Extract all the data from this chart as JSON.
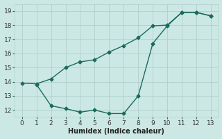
{
  "line1_x": [
    0,
    1,
    2,
    3,
    4,
    5,
    6,
    7,
    8,
    9,
    10,
    11,
    12,
    13
  ],
  "line1_y": [
    13.9,
    13.85,
    14.2,
    15.0,
    15.4,
    15.55,
    16.1,
    16.55,
    17.1,
    17.95,
    18.0,
    18.9,
    18.9,
    18.65
  ],
  "line2_x": [
    1,
    2,
    3,
    4,
    5,
    6,
    7,
    8,
    9,
    10,
    11,
    12,
    13
  ],
  "line2_y": [
    13.8,
    12.3,
    12.1,
    11.85,
    12.0,
    11.75,
    11.75,
    13.0,
    16.7,
    17.95,
    18.9,
    18.9,
    18.65
  ],
  "color": "#1a6b5a",
  "bg_color": "#cce8e4",
  "grid_major_color": "#b0d0cc",
  "grid_minor_color": "#d8ecea",
  "xlabel": "Humidex (Indice chaleur)",
  "xlim": [
    -0.5,
    13.5
  ],
  "ylim": [
    11.5,
    19.5
  ],
  "yticks": [
    12,
    13,
    14,
    15,
    16,
    17,
    18,
    19
  ],
  "xticks": [
    0,
    1,
    2,
    3,
    4,
    5,
    6,
    7,
    8,
    9,
    10,
    11,
    12,
    13
  ],
  "marker": "D",
  "markersize": 2.5,
  "linewidth": 1.0,
  "xlabel_fontsize": 7,
  "tick_fontsize": 6.5
}
